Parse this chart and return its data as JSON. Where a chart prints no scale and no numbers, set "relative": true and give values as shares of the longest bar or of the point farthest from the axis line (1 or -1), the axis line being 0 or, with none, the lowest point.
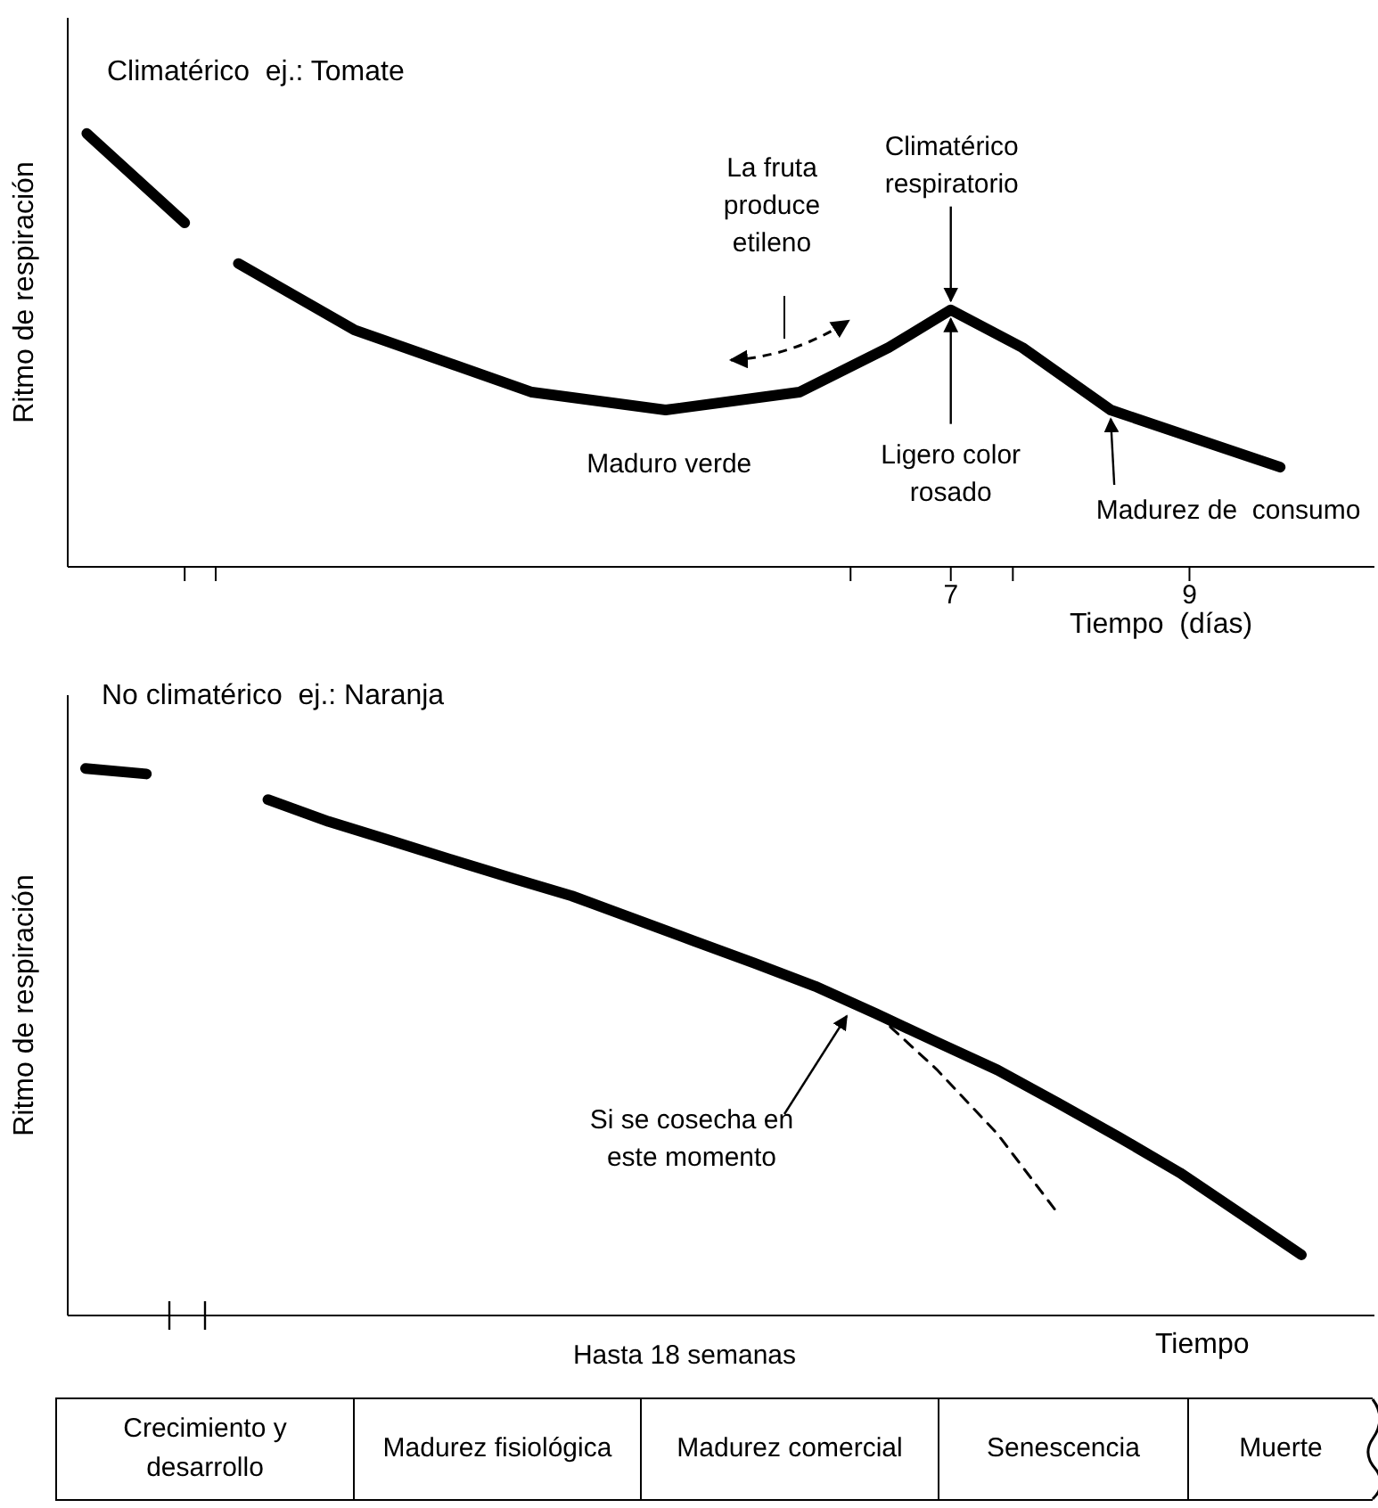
{
  "chart_data": [
    {
      "type": "line",
      "title": "Climatérico  ej.: Tomate",
      "xlabel": "Tiempo  (días)",
      "ylabel": "Ritmo de respiración",
      "relative": true,
      "xlim": [
        -0.4,
        10.55
      ],
      "xticks": [
        {
          "value": 0.58,
          "label": null
        },
        {
          "value": 0.84,
          "label": null
        },
        {
          "value": 6.16,
          "label": null
        },
        7,
        {
          "value": 7.52,
          "label": null
        },
        9
      ],
      "tick_labels": "x",
      "series": [
        {
          "color": "#000000",
          "x": [
            -0.24,
            0.58,
            0.8,
            1.03,
            2.0,
            3.49,
            4.61,
            5.73,
            6.48,
            7,
            7.6,
            8.34,
            9.76
          ],
          "values": [
            1,
            0.794,
            null,
            0.7,
            0.547,
            0.403,
            0.362,
            0.403,
            0.506,
            0.593,
            0.506,
            0.362,
            0.23
          ]
        }
      ],
      "annotations": [
        {
          "text": "Climatérico respiratorio",
          "x": 7,
          "y": 0.593
        },
        {
          "text": "Ligero color rosado",
          "x": 7,
          "y": 0.593
        },
        {
          "text": "Madurez de  consumo",
          "x": 8.34,
          "y": 0.362
        },
        {
          "text": "Maduro verde",
          "x": 4.61,
          "y": 0.362
        },
        "La fruta produce etileno"
      ]
    },
    {
      "type": "line",
      "title": "No climatérico  ej.: Naranja",
      "xlabel": "Tiempo",
      "ylabel": "Ritmo de respiración",
      "relative": true,
      "tick_labels": false,
      "categories": [
        null,
        null,
        null,
        null,
        null,
        null,
        null,
        null,
        null,
        null,
        null,
        null,
        null,
        null,
        null,
        null,
        null,
        null,
        null,
        null,
        null
      ],
      "series": [
        {
          "color": "#000000",
          "values": [
            1,
            0.99,
            null,
            0.943,
            0.903,
            0.869,
            0.834,
            0.8,
            0.767,
            0.726,
            0.685,
            0.644,
            0.602,
            0.552,
            0.5,
            0.449,
            0.388,
            0.326,
            0.261,
            0.186,
            0.111
          ]
        },
        {
          "color": "#000000",
          "line_style": "dashed",
          "values": [
            null,
            null,
            null,
            null,
            null,
            null,
            null,
            null,
            null,
            null,
            null,
            null,
            null,
            0.552,
            0.45,
            0.332,
            0.186,
            null,
            null,
            null,
            null
          ]
        }
      ],
      "annotations": [
        "Si se cosecha en este momento",
        "Hasta 18 semanas"
      ]
    },
    {
      "type": "other",
      "annotations": [
        "Crecimiento y desarrollo",
        "Madurez fisiológica",
        "Madurez comercial",
        "Senescencia",
        "Muerte"
      ]
    }
  ]
}
